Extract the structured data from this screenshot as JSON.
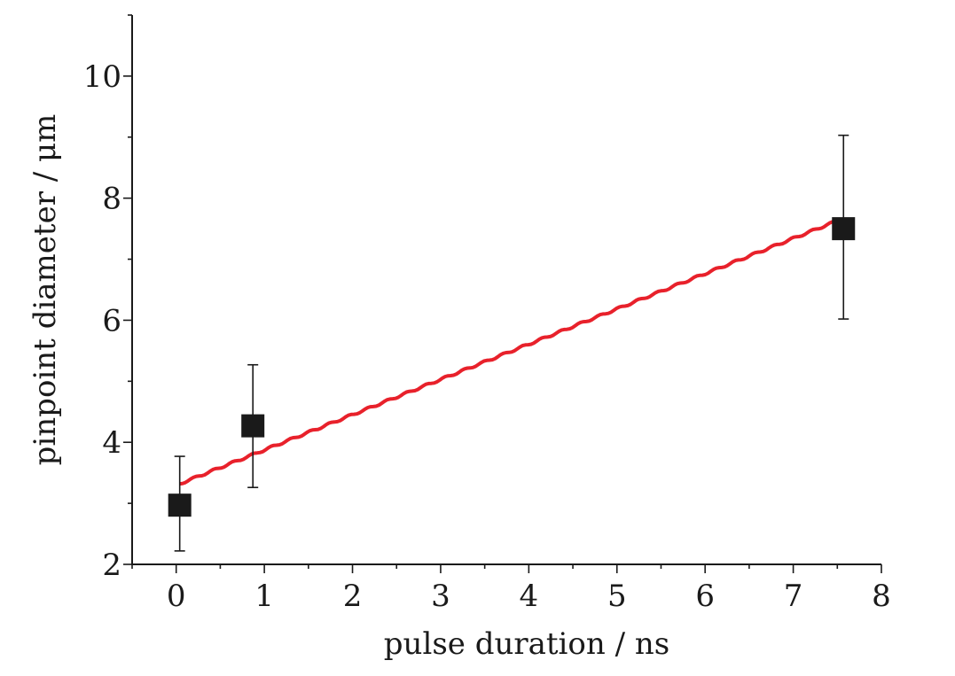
{
  "chart_data": {
    "type": "scatter",
    "xlabel": "pulse duration / ns",
    "ylabel": "pinpoint diameter / μm",
    "xlim": [
      -0.5,
      8
    ],
    "ylim": [
      2,
      11
    ],
    "x_ticks": [
      0,
      1,
      2,
      3,
      4,
      5,
      6,
      7,
      8
    ],
    "y_ticks": [
      2,
      4,
      6,
      8,
      10
    ],
    "x_minor_step": 0.5,
    "y_minor_step": 1,
    "points": [
      {
        "x": 0.04,
        "y": 2.97,
        "err_low": 2.22,
        "err_high": 3.77
      },
      {
        "x": 0.87,
        "y": 4.27,
        "err_low": 3.26,
        "err_high": 5.27
      },
      {
        "x": 7.57,
        "y": 7.5,
        "err_low": 6.02,
        "err_high": 9.03
      }
    ],
    "fit_line": {
      "x_start": 0.04,
      "x_end": 7.57,
      "y_start": 3.32,
      "y_end": 7.67
    },
    "colors": {
      "points": "#1a1a1a",
      "fit": "#e8212b",
      "axes": "#1a1a1a"
    },
    "grid": false
  }
}
